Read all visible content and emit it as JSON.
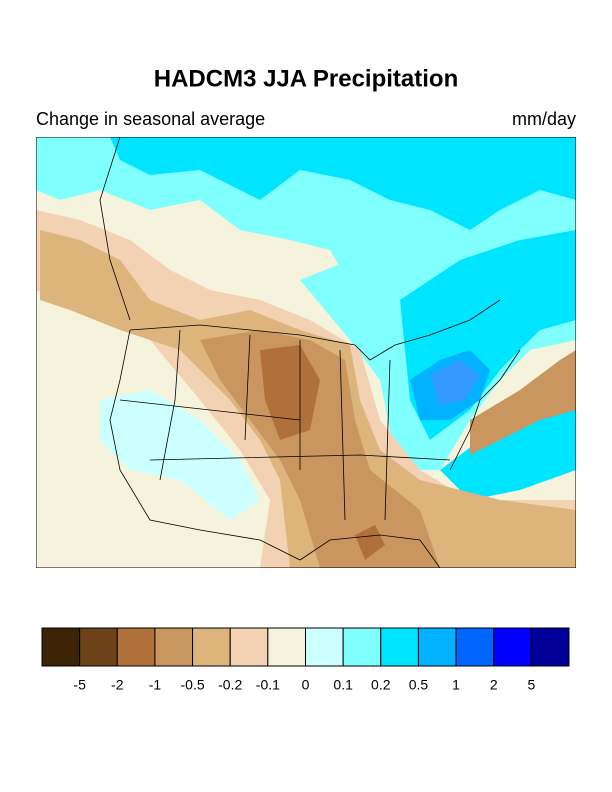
{
  "header": {
    "title": "HADCM3 JJA Precipitation",
    "subtitle": "Change in seasonal average",
    "units": "mm/day"
  },
  "colorbar": {
    "colors": [
      "#3d2306",
      "#6e4218",
      "#b0703a",
      "#c99660",
      "#dcb47c",
      "#f3d2b4",
      "#f5f3dc",
      "#ccffff",
      "#80ffff",
      "#00e5ff",
      "#00b2ff",
      "#0066ff",
      "#0000ff",
      "#000099"
    ],
    "levels": [
      -5,
      -2,
      -1,
      -0.5,
      -0.2,
      -0.1,
      0,
      0.1,
      0.2,
      0.5,
      1,
      2,
      5
    ]
  }
}
